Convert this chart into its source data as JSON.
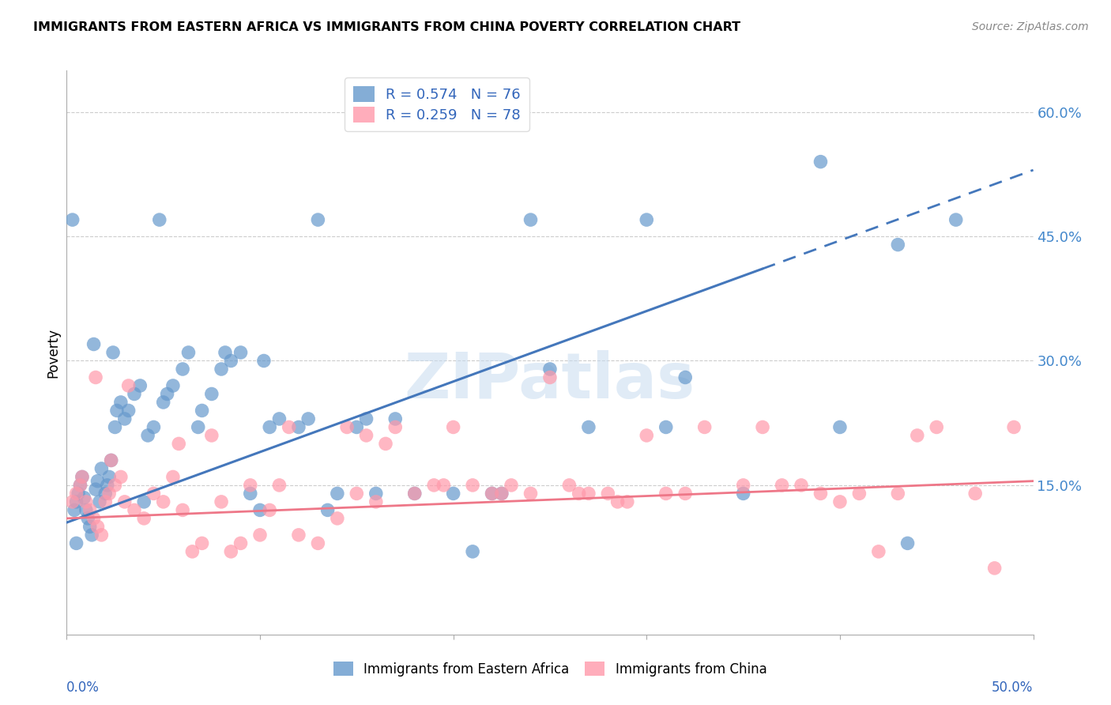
{
  "title": "IMMIGRANTS FROM EASTERN AFRICA VS IMMIGRANTS FROM CHINA POVERTY CORRELATION CHART",
  "source": "Source: ZipAtlas.com",
  "ylabel": "Poverty",
  "ylabel_right_ticks": [
    "60.0%",
    "45.0%",
    "30.0%",
    "15.0%"
  ],
  "ylabel_right_vals": [
    60.0,
    45.0,
    30.0,
    15.0
  ],
  "xlim": [
    0.0,
    50.0
  ],
  "ylim": [
    -3.0,
    65.0
  ],
  "series1_label": "Immigrants from Eastern Africa",
  "series1_R": "0.574",
  "series1_N": "76",
  "series1_color": "#6699CC",
  "series2_label": "Immigrants from China",
  "series2_R": "0.259",
  "series2_N": "78",
  "series2_color": "#FF99AA",
  "watermark_text": "ZIPatlas",
  "background_color": "#ffffff",
  "grid_color": "#cccccc",
  "series1_line_color": "#4477BB",
  "series2_line_color": "#EE7788",
  "series1_line_x": [
    0.0,
    50.0
  ],
  "series1_line_y": [
    10.5,
    53.0
  ],
  "series1_solid_end": 36.0,
  "series2_line_x": [
    0.0,
    50.0
  ],
  "series2_line_y": [
    11.0,
    15.5
  ],
  "series1_x": [
    0.5,
    0.6,
    0.7,
    0.8,
    0.9,
    1.0,
    1.1,
    1.2,
    1.3,
    1.5,
    1.6,
    1.7,
    1.8,
    2.0,
    2.1,
    2.2,
    2.3,
    2.5,
    2.6,
    2.8,
    3.0,
    3.2,
    3.5,
    3.8,
    4.0,
    4.2,
    4.5,
    5.0,
    5.2,
    5.5,
    6.0,
    6.3,
    6.8,
    7.0,
    7.5,
    8.0,
    8.5,
    9.0,
    9.5,
    10.0,
    10.5,
    11.0,
    12.0,
    12.5,
    13.0,
    14.0,
    15.0,
    15.5,
    16.0,
    17.0,
    18.0,
    20.0,
    21.0,
    22.0,
    22.5,
    24.0,
    25.0,
    27.0,
    30.0,
    31.0,
    32.0,
    35.0,
    39.0,
    40.0,
    43.0,
    43.5,
    46.0,
    0.4,
    0.5,
    1.4,
    2.4,
    8.2,
    10.2,
    13.5,
    0.3,
    4.8
  ],
  "series1_y": [
    13.0,
    14.0,
    15.0,
    16.0,
    13.5,
    12.0,
    11.0,
    10.0,
    9.0,
    14.5,
    15.5,
    13.0,
    17.0,
    14.0,
    15.0,
    16.0,
    18.0,
    22.0,
    24.0,
    25.0,
    23.0,
    24.0,
    26.0,
    27.0,
    13.0,
    21.0,
    22.0,
    25.0,
    26.0,
    27.0,
    29.0,
    31.0,
    22.0,
    24.0,
    26.0,
    29.0,
    30.0,
    31.0,
    14.0,
    12.0,
    22.0,
    23.0,
    22.0,
    23.0,
    47.0,
    14.0,
    22.0,
    23.0,
    14.0,
    23.0,
    14.0,
    14.0,
    7.0,
    14.0,
    14.0,
    47.0,
    29.0,
    22.0,
    47.0,
    22.0,
    28.0,
    14.0,
    54.0,
    22.0,
    44.0,
    8.0,
    47.0,
    12.0,
    8.0,
    32.0,
    31.0,
    31.0,
    30.0,
    12.0,
    47.0,
    47.0
  ],
  "series2_x": [
    0.3,
    0.5,
    0.7,
    0.8,
    1.0,
    1.2,
    1.4,
    1.6,
    1.8,
    2.0,
    2.2,
    2.5,
    2.8,
    3.0,
    3.5,
    4.0,
    4.5,
    5.0,
    5.5,
    6.0,
    6.5,
    7.0,
    8.0,
    8.5,
    9.0,
    10.0,
    10.5,
    11.0,
    12.0,
    13.0,
    14.0,
    15.0,
    16.0,
    17.0,
    18.0,
    19.0,
    20.0,
    21.0,
    22.0,
    23.0,
    24.0,
    25.0,
    26.0,
    27.0,
    28.0,
    29.0,
    30.0,
    31.0,
    32.0,
    33.0,
    35.0,
    37.0,
    38.0,
    39.0,
    40.0,
    41.0,
    42.0,
    43.0,
    45.0,
    47.0,
    48.0,
    49.0,
    1.5,
    2.3,
    3.2,
    5.8,
    7.5,
    9.5,
    11.5,
    14.5,
    15.5,
    16.5,
    19.5,
    22.5,
    26.5,
    28.5,
    36.0,
    44.0
  ],
  "series2_y": [
    13.0,
    14.0,
    15.0,
    16.0,
    13.0,
    12.0,
    11.0,
    10.0,
    9.0,
    13.0,
    14.0,
    15.0,
    16.0,
    13.0,
    12.0,
    11.0,
    14.0,
    13.0,
    16.0,
    12.0,
    7.0,
    8.0,
    13.0,
    7.0,
    8.0,
    9.0,
    12.0,
    15.0,
    9.0,
    8.0,
    11.0,
    14.0,
    13.0,
    22.0,
    14.0,
    15.0,
    22.0,
    15.0,
    14.0,
    15.0,
    14.0,
    28.0,
    15.0,
    14.0,
    14.0,
    13.0,
    21.0,
    14.0,
    14.0,
    22.0,
    15.0,
    15.0,
    15.0,
    14.0,
    13.0,
    14.0,
    7.0,
    14.0,
    22.0,
    14.0,
    5.0,
    22.0,
    28.0,
    18.0,
    27.0,
    20.0,
    21.0,
    15.0,
    22.0,
    22.0,
    21.0,
    20.0,
    15.0,
    14.0,
    14.0,
    13.0,
    22.0,
    21.0
  ]
}
